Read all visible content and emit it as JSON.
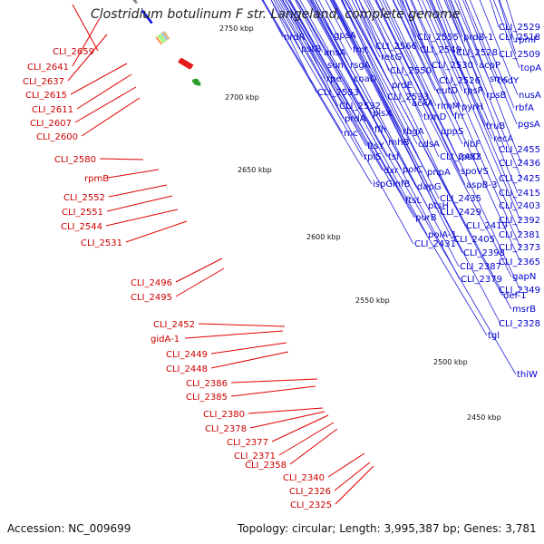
{
  "title": "Clostridium botulinum F str. Langeland, complete genome",
  "footer": {
    "accession": "Accession: NC_009699",
    "topology": "Topology: circular; Length: 3,995,387 bp; Genes: 3,781"
  },
  "colors": {
    "reverse_strand_labels": "#cc0000",
    "forward_strand_labels": "#0000cc",
    "backbone": "#808080",
    "cds_forward": "#1a1ae6",
    "cds_reverse": "#e61a1a",
    "marker_dots": "#2e9e2e"
  },
  "kbp_ticks": [
    "2750 kbp",
    "2700 kbp",
    "2650 kbp",
    "2600 kbp",
    "2550 kbp",
    "2500 kbp",
    "2450 kbp"
  ],
  "red_labels": [
    "CLI_2659",
    "CLI_2641",
    "CLI_2637",
    "CLI_2615",
    "CLI_2611",
    "CLI_2607",
    "CLI_2600",
    "CLI_2580",
    "rpmB",
    "CLI_2552",
    "CLI_2551",
    "CLI_2544",
    "CLI_2531",
    "CLI_2496",
    "CLI_2495",
    "CLI_2452",
    "gidA-1",
    "CLI_2449",
    "CLI_2448",
    "CLI_2386",
    "CLI_2385",
    "CLI_2380",
    "CLI_2378",
    "CLI_2377",
    "CLI_2371",
    "CLI_2358",
    "CLI_2340",
    "CLI_2326",
    "CLI_2325"
  ],
  "blue_labels": [
    "nrdR",
    "gpsA",
    "pstB",
    "ansA",
    "fmt",
    "CLI_2566",
    "sun",
    "rsgA",
    "recG",
    "rpe",
    "coaD",
    "CLI_2550",
    "CLI_2553",
    "prdE",
    "CLI_2533",
    "CLI_2532",
    "ackA",
    "prdA",
    "plsX",
    "rnc",
    "ffh",
    "rnhB",
    "ftsY",
    "rbgA",
    "trmD",
    "rimM",
    "frr",
    "rplS",
    "tsf",
    "dxr",
    "ispG",
    "infB",
    "polC",
    "cdsA",
    "dapG",
    "uppS",
    "ftsL",
    "ptsH",
    "purB",
    "CLI_2483",
    "pnpA",
    "rpsO",
    "ribF",
    "spoVS",
    "aspB-3",
    "CLI_2435",
    "CLI_2429",
    "CLI_2419",
    "polA-1",
    "CLI_2431",
    "CLI_2405",
    "CLI_2398",
    "CLI_2387",
    "CLI_2379",
    "CLI_2555",
    "prdB-1",
    "CLI_2549",
    "CLI_2528",
    "CLI_2530",
    "acpP",
    "CLI_2526",
    "smc",
    "eutD",
    "rpsP",
    "pyrH",
    "rpsB",
    "truB",
    "codY",
    "recA",
    "CLI_2518",
    "CLI_2529",
    "rpmF",
    "CLI_2509",
    "topA",
    "nusA",
    "rbfA",
    "pgsA",
    "CLI_2455",
    "CLI_2436",
    "CLI_2425",
    "CLI_2415",
    "CLI_2403",
    "CLI_2392",
    "CLI_2381",
    "CLI_2373",
    "CLI_2365",
    "gapN",
    "CLI_2349",
    "def-1",
    "tgl",
    "msrB",
    "CLI_2328",
    "thiW"
  ]
}
